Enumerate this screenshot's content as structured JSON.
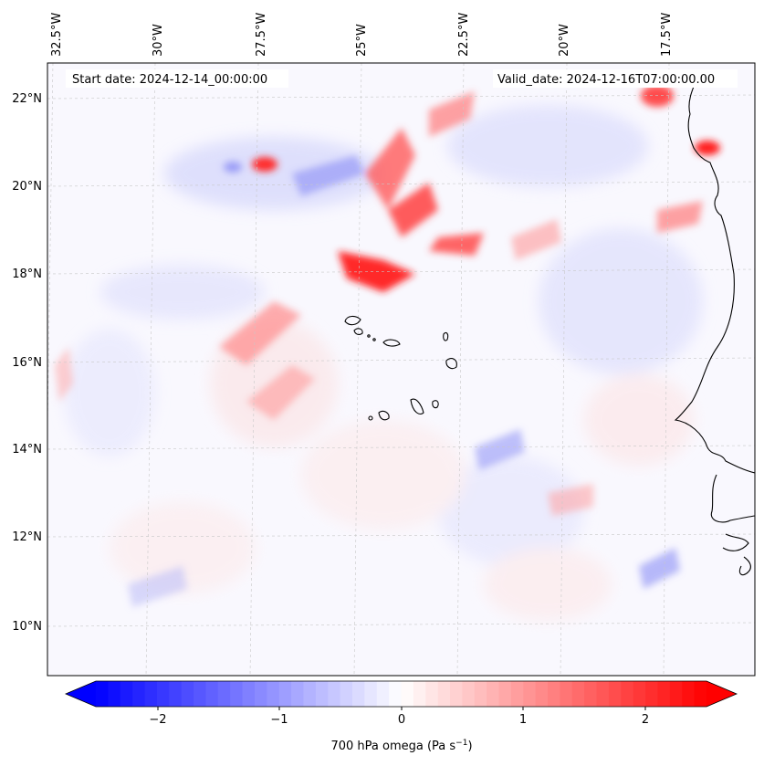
{
  "map": {
    "start_date": "Start date: 2024-12-14_00:00:00",
    "valid_date": "Valid_date: 2024-12-16T07:00:00.00",
    "lon_labels": [
      "32.5°W",
      "30°W",
      "27.5°W",
      "25°W",
      "22.5°W",
      "20°W",
      "17.5°W"
    ],
    "lat_labels": [
      "22°N",
      "20°N",
      "18°N",
      "16°N",
      "14°N",
      "12°N",
      "10°N"
    ],
    "colorbar": {
      "label": "700 hPa omega (Pa s",
      "label_exp": "−1",
      "label_close": ")",
      "ticks": [
        "−2",
        "−1",
        "0",
        "1",
        "2"
      ],
      "vmin": -2.6,
      "vmax": 2.6,
      "low_color": "#0000ff",
      "high_color": "#ff0000"
    }
  }
}
